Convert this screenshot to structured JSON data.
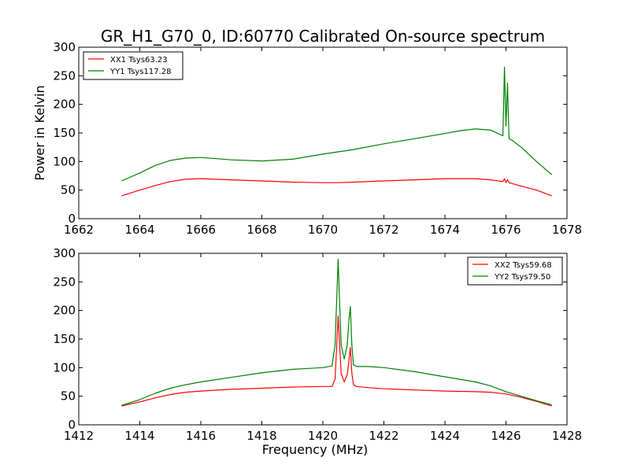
{
  "figure": {
    "title": "GR_H1_G70_0, ID:60770 Calibrated On-source spectrum"
  },
  "chart_data": [
    {
      "type": "line",
      "title": "GR_H1_G70_0, ID:60770 Calibrated On-source spectrum",
      "xlabel": "",
      "ylabel": "Power in Kelvin",
      "xlim": [
        1662,
        1678
      ],
      "ylim": [
        0,
        300
      ],
      "xticks": [
        1662,
        1664,
        1666,
        1668,
        1670,
        1672,
        1674,
        1676,
        1678
      ],
      "yticks": [
        0,
        50,
        100,
        150,
        200,
        250,
        300
      ],
      "legend_position": "top-left",
      "grid": false,
      "series": [
        {
          "name": "XX1 Tsys63.23",
          "color": "#ff0000",
          "x": [
            1663.4,
            1664.0,
            1664.5,
            1665.0,
            1665.5,
            1666.0,
            1666.5,
            1667.0,
            1668.0,
            1669.0,
            1670.0,
            1670.5,
            1671.0,
            1672.0,
            1673.0,
            1674.0,
            1675.0,
            1675.5,
            1675.9,
            1675.95,
            1676.0,
            1676.05,
            1676.1,
            1676.5,
            1677.0,
            1677.5
          ],
          "y": [
            40,
            50,
            58,
            65,
            69,
            70,
            69,
            68,
            66,
            64,
            63,
            63,
            64,
            66,
            68,
            70,
            70,
            68,
            65,
            70,
            63,
            68,
            63,
            57,
            50,
            40
          ]
        },
        {
          "name": "YY1 Tsys117.28",
          "color": "#008000",
          "x": [
            1663.4,
            1664.0,
            1664.5,
            1665.0,
            1665.5,
            1666.0,
            1666.5,
            1667.0,
            1668.0,
            1669.0,
            1670.0,
            1671.0,
            1672.0,
            1673.0,
            1674.0,
            1674.5,
            1675.0,
            1675.5,
            1675.9,
            1675.95,
            1676.0,
            1676.05,
            1676.1,
            1676.2,
            1676.5,
            1677.0,
            1677.5
          ],
          "y": [
            66,
            80,
            93,
            102,
            106,
            107,
            105,
            103,
            101,
            104,
            113,
            121,
            131,
            140,
            149,
            154,
            157,
            155,
            145,
            265,
            162,
            237,
            140,
            137,
            125,
            100,
            77
          ]
        }
      ]
    },
    {
      "type": "line",
      "title": "",
      "xlabel": "Frequency (MHz)",
      "ylabel": "",
      "xlim": [
        1412,
        1428
      ],
      "ylim": [
        0,
        300
      ],
      "xticks": [
        1412,
        1414,
        1416,
        1418,
        1420,
        1422,
        1424,
        1426,
        1428
      ],
      "yticks": [
        0,
        50,
        100,
        150,
        200,
        250,
        300
      ],
      "legend_position": "top-right",
      "grid": false,
      "series": [
        {
          "name": "XX2 Tsys59.68",
          "color": "#ff0000",
          "x": [
            1413.4,
            1414.0,
            1414.5,
            1415.0,
            1415.5,
            1416.0,
            1417.0,
            1418.0,
            1419.0,
            1420.0,
            1420.3,
            1420.4,
            1420.5,
            1420.55,
            1420.6,
            1420.7,
            1420.8,
            1420.85,
            1420.9,
            1420.95,
            1421.0,
            1421.1,
            1421.5,
            1422.0,
            1423.0,
            1424.0,
            1425.0,
            1425.5,
            1426.0,
            1426.5,
            1427.0,
            1427.5
          ],
          "y": [
            33,
            40,
            47,
            53,
            57,
            59,
            62,
            64,
            66,
            67,
            67,
            80,
            190,
            140,
            90,
            75,
            88,
            110,
            135,
            90,
            70,
            67,
            65,
            63,
            61,
            59,
            58,
            57,
            54,
            48,
            41,
            33
          ],
          "note_x": "",
          "note_y": ""
        },
        {
          "name": "YY2 Tsys79.50",
          "color": "#008000",
          "x": [
            1413.4,
            1414.0,
            1414.5,
            1415.0,
            1415.5,
            1416.0,
            1417.0,
            1418.0,
            1419.0,
            1420.0,
            1420.3,
            1420.4,
            1420.5,
            1420.55,
            1420.6,
            1420.7,
            1420.8,
            1420.85,
            1420.9,
            1420.95,
            1421.0,
            1421.1,
            1421.5,
            1422.0,
            1423.0,
            1424.0,
            1425.0,
            1425.5,
            1426.0,
            1426.5,
            1427.0,
            1427.5
          ],
          "y": [
            34,
            44,
            55,
            64,
            70,
            75,
            83,
            91,
            97,
            100,
            103,
            140,
            290,
            210,
            140,
            115,
            140,
            180,
            207,
            140,
            105,
            102,
            102,
            100,
            93,
            84,
            75,
            68,
            58,
            50,
            42,
            35
          ]
        }
      ]
    }
  ]
}
